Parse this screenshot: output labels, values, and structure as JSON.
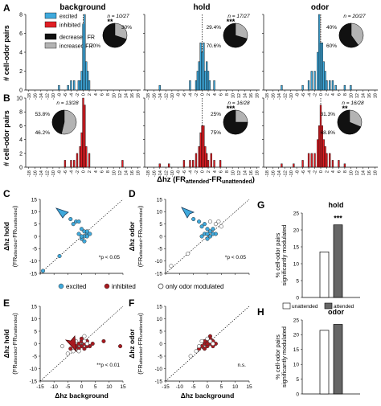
{
  "panels": {
    "A": "A",
    "B": "B",
    "C": "C",
    "D": "D",
    "E": "E",
    "F": "F",
    "G": "G",
    "H": "H"
  },
  "column_titles": [
    "background",
    "hold",
    "odor"
  ],
  "legend_AB": {
    "excited": "excited",
    "inhibited": "inhibited",
    "decreased": "decreased FR",
    "increased": "increased FR",
    "colors": {
      "excited": "#3fa9dc",
      "inhibited": "#e01e24",
      "decreased": "#111111",
      "increased": "#b3b3b3"
    }
  },
  "hist_ylabel": "# cell-odor pairs",
  "hist_xlabel": "Δhz (FR",
  "hist_xlabel_sub1": "attended",
  "hist_xlabel_mid": "-FR",
  "hist_xlabel_sub2": "unattended",
  "hist_xlabel_end": ")",
  "hist_xticks": [
    "-18",
    "-16",
    "-14",
    "-12",
    "-10",
    "-8",
    "-6",
    "-4",
    "-2",
    "0",
    "2",
    "4",
    "6",
    "8",
    "10",
    "12",
    "14",
    "16",
    "18"
  ],
  "hist_yticks_A": [
    "0",
    "2",
    "4",
    "6",
    "8"
  ],
  "hist_yticks_B": [
    "0",
    "2",
    "4",
    "6",
    "8",
    "10"
  ],
  "histA_annotations": [
    {
      "n": "n = 10/27",
      "stars": "**",
      "dec": "70%",
      "inc": "30%"
    },
    {
      "n": "n = 17/27",
      "stars": "***",
      "dec": "70.6%",
      "inc": "29.4%"
    },
    {
      "n": "n = 20/27",
      "stars": "",
      "dec": "60%",
      "inc": "40%"
    }
  ],
  "histB_annotations": [
    {
      "n": "n = 13/28",
      "stars": "",
      "dec": "46.2%",
      "inc": "53.8%"
    },
    {
      "n": "n = 16/28",
      "stars": "***",
      "dec": "75%",
      "inc": "25%"
    },
    {
      "n": "n = 16/28",
      "stars": "**",
      "dec": "68.8%",
      "inc": "31.3%"
    }
  ],
  "scatter_legend": {
    "excited": "excited",
    "inhibited": "inhibited",
    "only_odor": "only odor modulated"
  },
  "scatter": {
    "C": {
      "ylabel": "Δhz hold",
      "stat": "*p < 0.05"
    },
    "D": {
      "ylabel": "Δhz odor",
      "stat": "*p < 0.05"
    },
    "E": {
      "ylabel": "Δhz hold",
      "stat": "**p < 0.01",
      "xlabel": "Δhz background"
    },
    "F": {
      "ylabel": "Δhz odor",
      "stat": "n.s.",
      "xlabel": "Δhz background"
    }
  },
  "scatter_ylabel2": "(FR",
  "scatter_ticks": [
    "-15",
    "-10",
    "-5",
    "0",
    "5",
    "10",
    "15"
  ],
  "bars": {
    "G": {
      "title": "hold",
      "stars": "***"
    },
    "H": {
      "title": "odor",
      "stars": ""
    },
    "ylabel1": "% cell-odor pairs",
    "ylabel2": "significantly modulated",
    "yticks": [
      "0",
      "5",
      "10",
      "15",
      "20",
      "25"
    ],
    "legend_unattended": "unattended",
    "legend_attended": "attended"
  },
  "chart_data": [
    {
      "type": "bar",
      "panel": "A",
      "column": "background",
      "xlabel": "Δhz (FRattended-FRunattended)",
      "ylabel": "# cell-odor pairs",
      "ylim": [
        0,
        8
      ],
      "x": [
        -8,
        -5,
        -4,
        -3,
        -1.5,
        -1,
        -0.5,
        0,
        0.5,
        1,
        1.5,
        2
      ],
      "values": [
        0.5,
        0.5,
        1,
        1,
        1,
        1,
        2,
        7,
        8,
        3,
        2,
        1
      ],
      "color": "excited"
    },
    {
      "type": "bar",
      "panel": "A",
      "column": "hold",
      "ylim": [
        0,
        8
      ],
      "x": [
        -14,
        -4,
        -2,
        -1.5,
        -1,
        -0.5,
        0,
        0.5,
        1,
        1.5,
        2,
        2.5,
        4
      ],
      "values": [
        0.5,
        1,
        1,
        2,
        3,
        5,
        4,
        5,
        2,
        3,
        2,
        1,
        1
      ],
      "color": "excited"
    },
    {
      "type": "bar",
      "panel": "A",
      "column": "odor",
      "ylim": [
        0,
        8
      ],
      "x": [
        -13,
        -6,
        -4,
        -3,
        -2,
        -1,
        -0.5,
        0,
        0.5,
        1,
        1.5,
        2,
        3,
        4,
        5,
        8,
        10
      ],
      "values": [
        0.5,
        0.5,
        1,
        2,
        2,
        4,
        8,
        5,
        5,
        3,
        2,
        1,
        1,
        1,
        0.5,
        0.5,
        0.5
      ],
      "color": "excited"
    },
    {
      "type": "bar",
      "panel": "B",
      "column": "background",
      "ylim": [
        0,
        10
      ],
      "x": [
        -6,
        -4,
        -3,
        -2,
        -1,
        -0.5,
        0,
        0.5,
        1,
        2,
        13
      ],
      "values": [
        1,
        1,
        1,
        2,
        3,
        5,
        10,
        9,
        3,
        2,
        1
      ],
      "color": "inhibited"
    },
    {
      "type": "bar",
      "panel": "B",
      "column": "hold",
      "ylim": [
        0,
        10
      ],
      "x": [
        -14,
        -11,
        -6,
        -4,
        -3,
        -2,
        -1,
        -0.5,
        0,
        0.5,
        1,
        1.5,
        2,
        3,
        4,
        6
      ],
      "values": [
        0.5,
        0.5,
        1,
        1,
        1,
        2,
        3,
        5,
        6,
        6,
        3,
        2,
        1,
        2,
        1,
        1
      ],
      "color": "inhibited"
    },
    {
      "type": "bar",
      "panel": "B",
      "column": "odor",
      "ylim": [
        0,
        10
      ],
      "x": [
        -13,
        -9,
        -6,
        -4,
        -3,
        -2,
        -1,
        -0.5,
        0,
        0.5,
        1,
        1.5,
        2,
        3,
        4,
        6,
        8
      ],
      "values": [
        0.5,
        0.5,
        1,
        2,
        2,
        2,
        4,
        6,
        9,
        6,
        4,
        3,
        2,
        2,
        1,
        1,
        0.5
      ],
      "color": "inhibited"
    },
    {
      "type": "pie",
      "panel": "A",
      "column": "background",
      "values": [
        70,
        30
      ],
      "categories": [
        "decreased FR",
        "increased FR"
      ]
    },
    {
      "type": "pie",
      "panel": "A",
      "column": "hold",
      "values": [
        70.6,
        29.4
      ],
      "categories": [
        "decreased FR",
        "increased FR"
      ]
    },
    {
      "type": "pie",
      "panel": "A",
      "column": "odor",
      "values": [
        60,
        40
      ],
      "categories": [
        "decreased FR",
        "increased FR"
      ]
    },
    {
      "type": "pie",
      "panel": "B",
      "column": "background",
      "values": [
        46.2,
        53.8
      ],
      "categories": [
        "decreased FR",
        "increased FR"
      ]
    },
    {
      "type": "pie",
      "panel": "B",
      "column": "hold",
      "values": [
        75,
        25
      ],
      "categories": [
        "decreased FR",
        "increased FR"
      ]
    },
    {
      "type": "pie",
      "panel": "B",
      "column": "odor",
      "values": [
        68.8,
        31.3
      ],
      "categories": [
        "decreased FR",
        "increased FR"
      ]
    },
    {
      "type": "scatter",
      "panel": "C",
      "xlim": [
        -15,
        15
      ],
      "ylim": [
        -15,
        15
      ],
      "points": [
        {
          "x": -4,
          "y": 7,
          "c": "excited"
        },
        {
          "x": -2,
          "y": 6,
          "c": "excited"
        },
        {
          "x": -3,
          "y": 5,
          "c": "excited"
        },
        {
          "x": -1,
          "y": 6,
          "c": "excited"
        },
        {
          "x": 0,
          "y": 3,
          "c": "excited"
        },
        {
          "x": 1,
          "y": 2,
          "c": "excited"
        },
        {
          "x": 2,
          "y": 1,
          "c": "excited"
        },
        {
          "x": 1,
          "y": 0,
          "c": "excited"
        },
        {
          "x": 0,
          "y": -1,
          "c": "excited"
        },
        {
          "x": 2,
          "y": 0,
          "c": "excited"
        },
        {
          "x": 1,
          "y": -2,
          "c": "excited"
        },
        {
          "x": 3,
          "y": 1,
          "c": "excited"
        },
        {
          "x": -1,
          "y": 1,
          "c": "excited"
        },
        {
          "x": 0,
          "y": 0,
          "c": "excited"
        },
        {
          "x": 2,
          "y": 2,
          "c": "excited"
        },
        {
          "x": -8,
          "y": -8,
          "c": "excited"
        },
        {
          "x": -14,
          "y": -14,
          "c": "excited"
        }
      ]
    },
    {
      "type": "scatter",
      "panel": "D",
      "xlim": [
        -15,
        15
      ],
      "ylim": [
        -15,
        15
      ],
      "points": [
        {
          "x": -5,
          "y": 7,
          "c": "excited"
        },
        {
          "x": -3,
          "y": 6,
          "c": "excited"
        },
        {
          "x": -2,
          "y": 4,
          "c": "excited"
        },
        {
          "x": -1,
          "y": 5,
          "c": "excited"
        },
        {
          "x": 0,
          "y": 3,
          "c": "excited"
        },
        {
          "x": 1,
          "y": 2,
          "c": "excited"
        },
        {
          "x": 2,
          "y": 1,
          "c": "excited"
        },
        {
          "x": 1,
          "y": 0,
          "c": "excited"
        },
        {
          "x": 0,
          "y": -1,
          "c": "excited"
        },
        {
          "x": 2,
          "y": 3,
          "c": "excited"
        },
        {
          "x": -1,
          "y": 1,
          "c": "excited"
        },
        {
          "x": 3,
          "y": 1,
          "c": "excited"
        },
        {
          "x": 0,
          "y": 1,
          "c": "excited"
        },
        {
          "x": -2,
          "y": 0,
          "c": "excited"
        },
        {
          "x": 3,
          "y": 5,
          "c": "only_odor"
        },
        {
          "x": 4,
          "y": 6,
          "c": "only_odor"
        },
        {
          "x": 1,
          "y": 6,
          "c": "only_odor"
        },
        {
          "x": 5,
          "y": 4,
          "c": "only_odor"
        },
        {
          "x": -7,
          "y": -7,
          "c": "only_odor"
        },
        {
          "x": -13,
          "y": -12,
          "c": "only_odor"
        }
      ]
    },
    {
      "type": "scatter",
      "panel": "E",
      "xlim": [
        -15,
        15
      ],
      "ylim": [
        -15,
        15
      ],
      "points": [
        {
          "x": -3,
          "y": 0,
          "c": "inhibited"
        },
        {
          "x": -2,
          "y": -1,
          "c": "inhibited"
        },
        {
          "x": -1,
          "y": -2,
          "c": "inhibited"
        },
        {
          "x": 0,
          "y": -1,
          "c": "inhibited"
        },
        {
          "x": 1,
          "y": 0,
          "c": "inhibited"
        },
        {
          "x": 2,
          "y": 1,
          "c": "inhibited"
        },
        {
          "x": 0,
          "y": 1,
          "c": "inhibited"
        },
        {
          "x": -1,
          "y": 0,
          "c": "inhibited"
        },
        {
          "x": 3,
          "y": -1,
          "c": "inhibited"
        },
        {
          "x": 1,
          "y": -2,
          "c": "inhibited"
        },
        {
          "x": 4,
          "y": 0,
          "c": "inhibited"
        },
        {
          "x": -4,
          "y": -2,
          "c": "inhibited"
        },
        {
          "x": 0,
          "y": 2,
          "c": "inhibited"
        },
        {
          "x": 2,
          "y": -1,
          "c": "inhibited"
        },
        {
          "x": 8,
          "y": 1,
          "c": "inhibited"
        },
        {
          "x": 14,
          "y": -1,
          "c": "inhibited"
        },
        {
          "x": -2,
          "y": 1,
          "c": "only_odor"
        },
        {
          "x": 1,
          "y": 1,
          "c": "only_odor"
        },
        {
          "x": -5,
          "y": -4,
          "c": "only_odor"
        },
        {
          "x": -1,
          "y": -3,
          "c": "only_odor"
        },
        {
          "x": 2,
          "y": 0,
          "c": "only_odor"
        },
        {
          "x": -3,
          "y": -3,
          "c": "only_odor"
        },
        {
          "x": -7,
          "y": -1,
          "c": "only_odor"
        },
        {
          "x": 1,
          "y": 3,
          "c": "only_odor"
        }
      ]
    },
    {
      "type": "scatter",
      "panel": "F",
      "xlim": [
        -15,
        15
      ],
      "ylim": [
        -15,
        15
      ],
      "points": [
        {
          "x": -2,
          "y": -1,
          "c": "inhibited"
        },
        {
          "x": -1,
          "y": 0,
          "c": "inhibited"
        },
        {
          "x": 0,
          "y": -1,
          "c": "inhibited"
        },
        {
          "x": 1,
          "y": 0,
          "c": "inhibited"
        },
        {
          "x": 0,
          "y": 1,
          "c": "inhibited"
        },
        {
          "x": 2,
          "y": 1,
          "c": "inhibited"
        },
        {
          "x": 1,
          "y": 3,
          "c": "inhibited"
        },
        {
          "x": -1,
          "y": 1,
          "c": "inhibited"
        },
        {
          "x": 3,
          "y": 0,
          "c": "inhibited"
        },
        {
          "x": -3,
          "y": -2,
          "c": "inhibited"
        },
        {
          "x": 0,
          "y": 0,
          "c": "inhibited"
        },
        {
          "x": 2,
          "y": -1,
          "c": "inhibited"
        },
        {
          "x": 1,
          "y": 2,
          "c": "inhibited"
        },
        {
          "x": -1,
          "y": -2,
          "c": "inhibited"
        },
        {
          "x": -2,
          "y": 1,
          "c": "only_odor"
        },
        {
          "x": 1,
          "y": 1,
          "c": "only_odor"
        },
        {
          "x": -3,
          "y": -1,
          "c": "only_odor"
        },
        {
          "x": 0,
          "y": 2,
          "c": "only_odor"
        },
        {
          "x": -4,
          "y": -3,
          "c": "only_odor"
        },
        {
          "x": -6,
          "y": -5,
          "c": "only_odor"
        },
        {
          "x": 2,
          "y": 0,
          "c": "only_odor"
        }
      ]
    },
    {
      "type": "bar",
      "panel": "G",
      "title": "hold",
      "categories": [
        "unattended",
        "attended"
      ],
      "values": [
        13.5,
        21.5
      ],
      "ylim": [
        0,
        25
      ]
    },
    {
      "type": "bar",
      "panel": "H",
      "title": "odor",
      "categories": [
        "unattended",
        "attended"
      ],
      "values": [
        21.5,
        23.5
      ],
      "ylim": [
        0,
        25
      ]
    }
  ]
}
